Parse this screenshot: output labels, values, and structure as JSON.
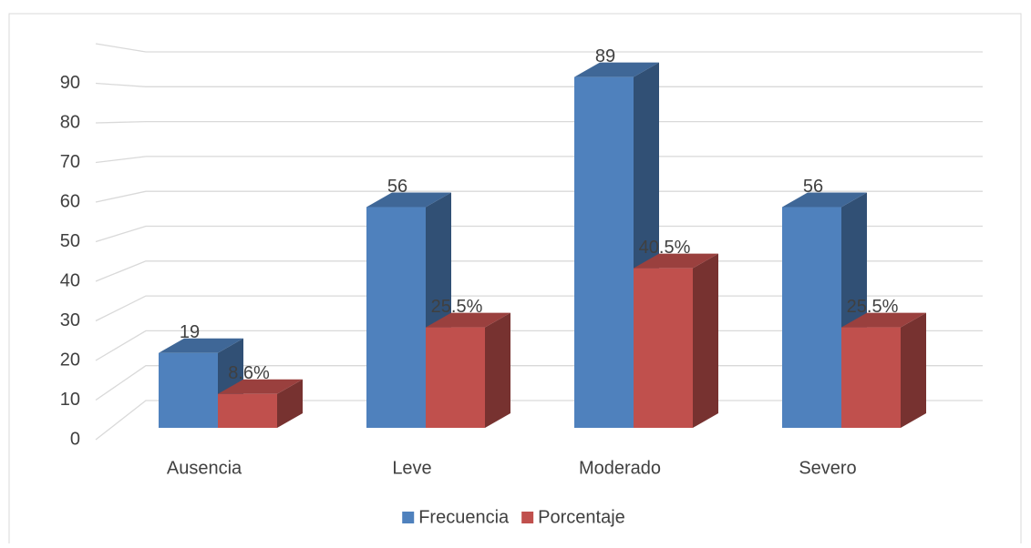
{
  "chart_data": {
    "type": "bar3d",
    "categories": [
      "Ausencia",
      "Leve",
      "Moderado",
      "Severo"
    ],
    "series": [
      {
        "name": "Frecuencia",
        "color": "#4f81bd",
        "values": [
          19,
          56,
          89,
          56
        ]
      },
      {
        "name": "Porcentaje",
        "color": "#c0504d",
        "values": [
          8.6,
          25.5,
          40.5,
          25.5
        ],
        "value_labels": [
          "8.6%",
          "25.5%",
          "40.5%",
          "25.5%"
        ]
      }
    ],
    "ylim": [
      0,
      100
    ],
    "yticks": [
      0,
      10,
      20,
      30,
      40,
      50,
      60,
      70,
      80,
      90
    ],
    "grid": true,
    "legend": "bottom"
  }
}
